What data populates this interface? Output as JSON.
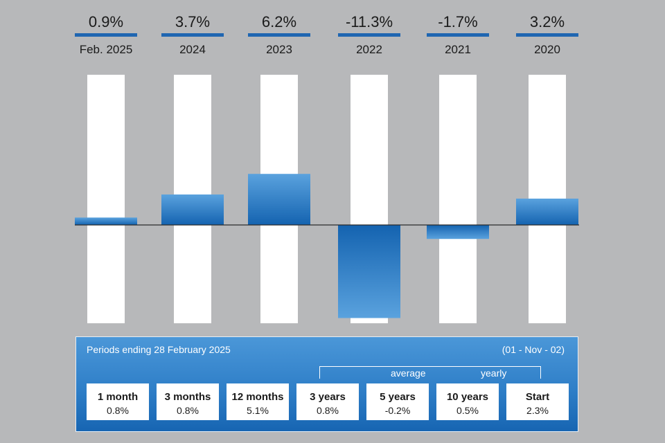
{
  "chart_data": {
    "type": "bar",
    "categories": [
      "Feb. 2025",
      "2024",
      "2023",
      "2022",
      "2021",
      "2020"
    ],
    "values": [
      0.9,
      3.7,
      6.2,
      -11.3,
      -1.7,
      3.2
    ],
    "value_labels": [
      "0.9%",
      "3.7%",
      "6.2%",
      "-11.3%",
      "-1.7%",
      "3.2%"
    ],
    "title": "",
    "xlabel": "",
    "ylabel": "",
    "grid": false,
    "colors": {
      "bar_top": "#5aa2de",
      "bar_bottom": "#1463b0",
      "header_rule": "#1f66b1",
      "track": "#ffffff",
      "background": "#b7b8ba"
    }
  },
  "summary": {
    "title": "Periods ending 28 February 2025",
    "since": "(01 - Nov - 02)",
    "bracket_left": "average",
    "bracket_right": "yearly",
    "periods": [
      {
        "label": "1 month",
        "value": "0.8%"
      },
      {
        "label": "3 months",
        "value": "0.8%"
      },
      {
        "label": "12 months",
        "value": "5.1%"
      },
      {
        "label": "3 years",
        "value": "0.8%"
      },
      {
        "label": "5 years",
        "value": "-0.2%"
      },
      {
        "label": "10 years",
        "value": "0.5%"
      },
      {
        "label": "Start",
        "value": "2.3%"
      }
    ]
  }
}
